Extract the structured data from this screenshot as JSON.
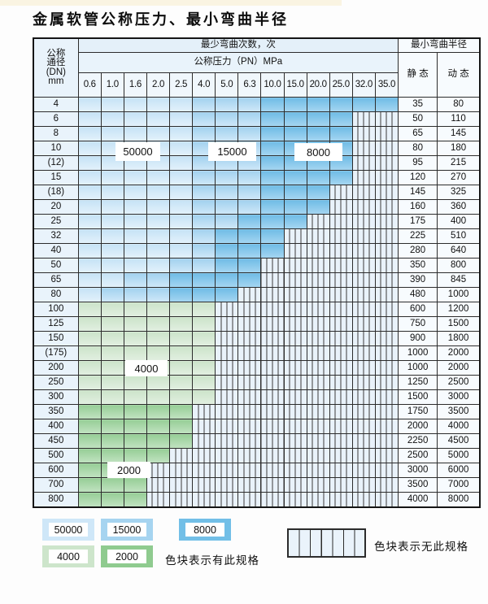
{
  "title": "金属软管公称压力、最小弯曲半径",
  "table": {
    "dn_header_lines": [
      "公称",
      "通径",
      "(DN)",
      "mm"
    ],
    "bend_times_header": "最少弯曲次数，次",
    "pressure_header": "公称压力（PN）MPa",
    "radius_header": "最小弯曲半径",
    "static_header": "静 态",
    "dynamic_header": "动 态",
    "pressure_columns": [
      "0.6",
      "1.0",
      "1.6",
      "2.0",
      "2.5",
      "4.0",
      "5.0",
      "6.3",
      "10.0",
      "15.0",
      "20.0",
      "25.0",
      "32.0",
      "35.0"
    ],
    "zone_legend_key": {
      "L": "50000",
      "M": "15000",
      "D": "8000",
      "G": "4000",
      "H": "2000",
      "X": "no-spec"
    },
    "rows": [
      {
        "dn": "4",
        "zones": "LLLLLMMMDDDDDD",
        "static": "35",
        "dynamic": "80"
      },
      {
        "dn": "6",
        "zones": "LLLLLMMMDDDDXX",
        "static": "50",
        "dynamic": "110"
      },
      {
        "dn": "8",
        "zones": "LLLLLMMMDDDDXX",
        "static": "65",
        "dynamic": "145"
      },
      {
        "dn": "10",
        "zones": "LLLLLMMMDDDDXX",
        "static": "80",
        "dynamic": "180"
      },
      {
        "dn": "(12)",
        "zones": "LLLLLMMMDDDDXX",
        "static": "95",
        "dynamic": "215"
      },
      {
        "dn": "15",
        "zones": "LLLLLMMMDDDDXX",
        "static": "120",
        "dynamic": "270"
      },
      {
        "dn": "(18)",
        "zones": "LLLLLMMMDDDXXX",
        "static": "145",
        "dynamic": "325"
      },
      {
        "dn": "20",
        "zones": "LLLLLMMMDDDXXX",
        "static": "160",
        "dynamic": "360"
      },
      {
        "dn": "25",
        "zones": "LLLLLMMDDDXXXX",
        "static": "175",
        "dynamic": "400"
      },
      {
        "dn": "32",
        "zones": "LLLLLMDDDXXXXX",
        "static": "225",
        "dynamic": "510"
      },
      {
        "dn": "40",
        "zones": "LLLLLMDDDXXXXX",
        "static": "280",
        "dynamic": "640"
      },
      {
        "dn": "50",
        "zones": "LLLLMMDDXXXXXX",
        "static": "350",
        "dynamic": "800"
      },
      {
        "dn": "65",
        "zones": "LLMMDDDDXXXXXX",
        "static": "390",
        "dynamic": "845"
      },
      {
        "dn": "80",
        "zones": "LMMMDDDXXXXXXX",
        "static": "480",
        "dynamic": "1000"
      },
      {
        "dn": "100",
        "zones": "GGGGGGXXXXXXXX",
        "static": "600",
        "dynamic": "1200"
      },
      {
        "dn": "125",
        "zones": "GGGGGGXXXXXXXX",
        "static": "750",
        "dynamic": "1500"
      },
      {
        "dn": "150",
        "zones": "GGGGGGXXXXXXXX",
        "static": "900",
        "dynamic": "1800"
      },
      {
        "dn": "(175)",
        "zones": "GGGGGGXXXXXXXX",
        "static": "1000",
        "dynamic": "2000"
      },
      {
        "dn": "200",
        "zones": "GGGGGGXXXXXXXX",
        "static": "1000",
        "dynamic": "2000"
      },
      {
        "dn": "250",
        "zones": "GGGGGGXXXXXXXX",
        "static": "1250",
        "dynamic": "2500"
      },
      {
        "dn": "300",
        "zones": "GGGGGGXXXXXXXX",
        "static": "1500",
        "dynamic": "3000"
      },
      {
        "dn": "350",
        "zones": "HHHHHXXXXXXXXX",
        "static": "1750",
        "dynamic": "3500"
      },
      {
        "dn": "400",
        "zones": "HHHHHXXXXXXXXX",
        "static": "2000",
        "dynamic": "4000"
      },
      {
        "dn": "450",
        "zones": "HHHHHXXXXXXXXX",
        "static": "2250",
        "dynamic": "4500"
      },
      {
        "dn": "500",
        "zones": "HHHHXXXXXXXXXX",
        "static": "2500",
        "dynamic": "5000"
      },
      {
        "dn": "600",
        "zones": "HHHXXXXXXXXXXX",
        "static": "3000",
        "dynamic": "6000"
      },
      {
        "dn": "700",
        "zones": "HHHXXXXXXXXXXX",
        "static": "3500",
        "dynamic": "7000"
      },
      {
        "dn": "800",
        "zones": "HHHXXXXXXXXXXX",
        "static": "4000",
        "dynamic": "8000"
      }
    ]
  },
  "zone_labels": [
    {
      "id": "label-50000",
      "text": "50000"
    },
    {
      "id": "label-15000",
      "text": "15000"
    },
    {
      "id": "label-8000",
      "text": "8000"
    },
    {
      "id": "label-4000",
      "text": "4000"
    },
    {
      "id": "label-2000",
      "text": "2000"
    }
  ],
  "legend": {
    "items": [
      {
        "value": "50000",
        "zone": "L"
      },
      {
        "value": "15000",
        "zone": "M"
      },
      {
        "value": "8000",
        "zone": "D"
      },
      {
        "value": "4000",
        "zone": "G"
      },
      {
        "value": "2000",
        "zone": "H"
      }
    ],
    "has_spec_text": "色块表示有此规格",
    "no_spec_text": "色块表示无此规格"
  },
  "colors": {
    "light_blue_50000": "#cfe7f8",
    "medium_blue_15000": "#a6d4f0",
    "dark_blue_8000": "#72bfe7",
    "light_green_4000": "#cde5cb",
    "medium_green_2000": "#8fcb8f",
    "striped_bg": "#eaf3fb"
  }
}
